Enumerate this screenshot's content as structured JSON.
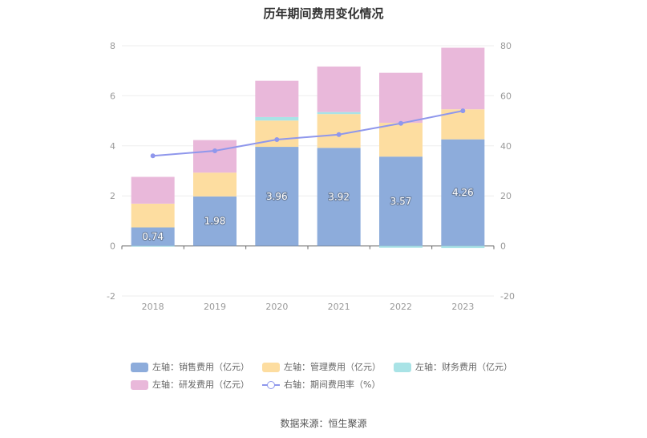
{
  "chart_data": {
    "type": "bar",
    "title": "历年期间费用变化情况",
    "categories": [
      "2018",
      "2019",
      "2020",
      "2021",
      "2022",
      "2023"
    ],
    "left_axis": {
      "ylim": [
        -2,
        8
      ],
      "ticks": [
        "-2",
        "0",
        "2",
        "4",
        "6",
        "8"
      ]
    },
    "right_axis": {
      "ylim": [
        -20,
        80
      ],
      "ticks": [
        "-20",
        "0",
        "20",
        "40",
        "60",
        "80"
      ]
    },
    "series": [
      {
        "name": "左轴：销售费用（亿元）",
        "axis": "left",
        "stack": true,
        "color": "#8dacdb",
        "values": [
          0.74,
          1.98,
          3.96,
          3.92,
          3.57,
          4.26
        ],
        "labels": [
          "0.74",
          "1.98",
          "3.96",
          "3.92",
          "3.57",
          "4.26"
        ]
      },
      {
        "name": "左轴：管理费用（亿元）",
        "axis": "left",
        "stack": true,
        "color": "#fddda0",
        "values": [
          0.95,
          0.95,
          1.05,
          1.35,
          1.35,
          1.2
        ]
      },
      {
        "name": "左轴：财务费用（亿元）",
        "axis": "left",
        "stack": true,
        "color": "#a9e3e6",
        "values": [
          -0.02,
          0.0,
          0.14,
          0.08,
          -0.07,
          -0.08
        ]
      },
      {
        "name": "左轴：研发费用（亿元）",
        "axis": "left",
        "stack": true,
        "color": "#e9b8da",
        "values": [
          1.07,
          1.3,
          1.45,
          1.82,
          2.0,
          2.46
        ]
      },
      {
        "name": "右轴：期间费用率（%）",
        "axis": "right",
        "type": "line",
        "color": "#8f97ec",
        "values": [
          36.0,
          38.0,
          42.5,
          44.5,
          49.0,
          54.0
        ]
      }
    ]
  },
  "source": "数据来源：恒生聚源"
}
